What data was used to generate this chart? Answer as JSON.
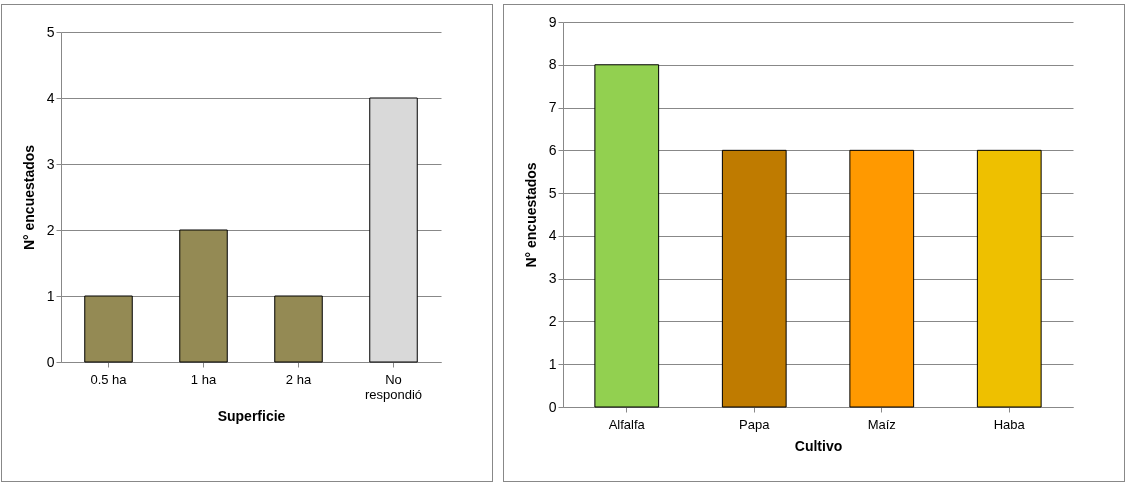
{
  "chart_data": [
    {
      "type": "bar",
      "xlabel": "Superficie",
      "ylabel": "N° encuestados",
      "categories": [
        "0.5 ha",
        "1 ha",
        "2 ha",
        "No respondió"
      ],
      "values": [
        1,
        2,
        1,
        4
      ],
      "colors": [
        "#948a54",
        "#948a54",
        "#948a54",
        "#d9d9d9"
      ],
      "ylim": [
        0,
        5
      ],
      "yticks": [
        0,
        1,
        2,
        3,
        4,
        5
      ],
      "grid": "y"
    },
    {
      "type": "bar",
      "xlabel": "Cultivo",
      "ylabel": "N° encuestados",
      "categories": [
        "Alfalfa",
        "Papa",
        "Maíz",
        "Haba"
      ],
      "values": [
        8,
        6,
        6,
        6
      ],
      "colors": [
        "#92d050",
        "#bf7b00",
        "#ff9900",
        "#eec000"
      ],
      "ylim": [
        0,
        9
      ],
      "yticks": [
        0,
        1,
        2,
        3,
        4,
        5,
        6,
        7,
        8,
        9
      ],
      "grid": "y"
    }
  ]
}
